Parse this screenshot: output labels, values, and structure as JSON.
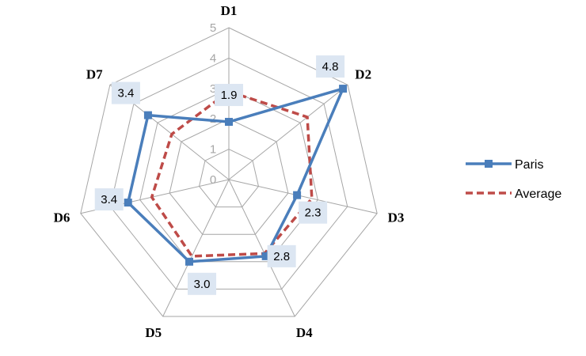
{
  "chart_data": {
    "type": "radar",
    "categories": [
      "D1",
      "D2",
      "D3",
      "D4",
      "D5",
      "D6",
      "D7"
    ],
    "rlim": [
      0,
      5
    ],
    "ticks": [
      0,
      1,
      2,
      3,
      4,
      5
    ],
    "grid": true,
    "legend_position": "right",
    "series": [
      {
        "name": "Paris",
        "values": [
          1.9,
          4.8,
          2.3,
          2.8,
          3.0,
          3.4,
          3.4
        ],
        "labels": [
          "1.9",
          "4.8",
          "2.3",
          "2.8",
          "3.0",
          "3.4",
          "3.4"
        ],
        "color": "#4a7ebb",
        "style": "solid-square-markers"
      },
      {
        "name": "Average",
        "values": [
          2.9,
          3.3,
          2.8,
          2.7,
          2.8,
          2.6,
          2.4
        ],
        "color": "#be4b48",
        "style": "dashed"
      }
    ]
  }
}
